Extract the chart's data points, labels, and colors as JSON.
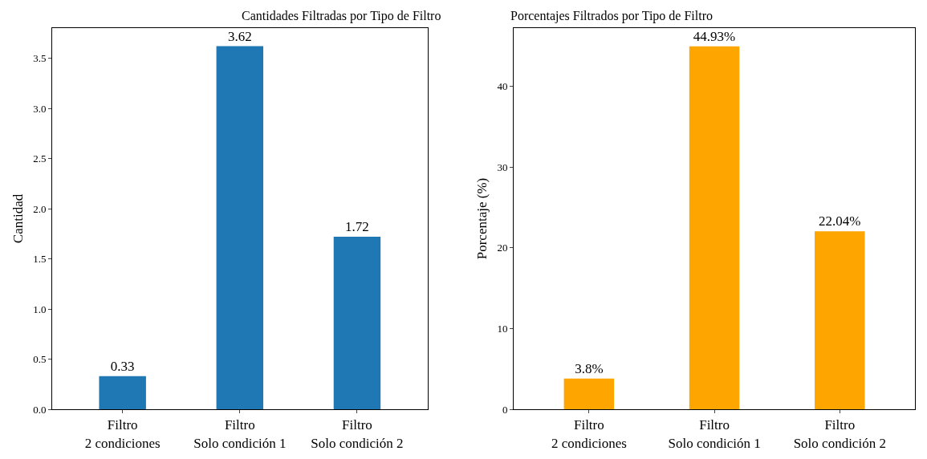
{
  "chart_data": [
    {
      "type": "bar",
      "title": "Cantidades Filtradas por Tipo de Filtro",
      "ylabel": "Cantidad",
      "categories": [
        "Filtro\n2 condiciones",
        "Filtro\nSolo condición 1",
        "Filtro\nSolo condición 2"
      ],
      "values": [
        0.33,
        3.62,
        1.72
      ],
      "value_labels": [
        "0.33",
        "3.62",
        "1.72"
      ],
      "color": "#1f77b4",
      "ylim": [
        0,
        3.8
      ],
      "yticks": [
        {
          "value": 0,
          "label": "0.0"
        },
        {
          "value": 0.5,
          "label": "0.5"
        },
        {
          "value": 1,
          "label": "1.0"
        },
        {
          "value": 1.5,
          "label": "1.5"
        },
        {
          "value": 2,
          "label": "2.0"
        },
        {
          "value": 2.5,
          "label": "2.5"
        },
        {
          "value": 3,
          "label": "3.0"
        },
        {
          "value": 3.5,
          "label": "3.5"
        }
      ]
    },
    {
      "type": "bar",
      "title": "Porcentajes Filtrados por Tipo de Filtro",
      "ylabel": "Porcentaje (%)",
      "categories": [
        "Filtro\n2 condiciones",
        "Filtro\nSolo condición 1",
        "Filtro\nSolo condición 2"
      ],
      "values": [
        3.8,
        44.93,
        22.04
      ],
      "value_labels": [
        "3.8%",
        "44.93%",
        "22.04%"
      ],
      "color": "#ffa500",
      "ylim": [
        0,
        47.2
      ],
      "yticks": [
        0,
        10,
        20,
        30,
        40
      ]
    }
  ]
}
